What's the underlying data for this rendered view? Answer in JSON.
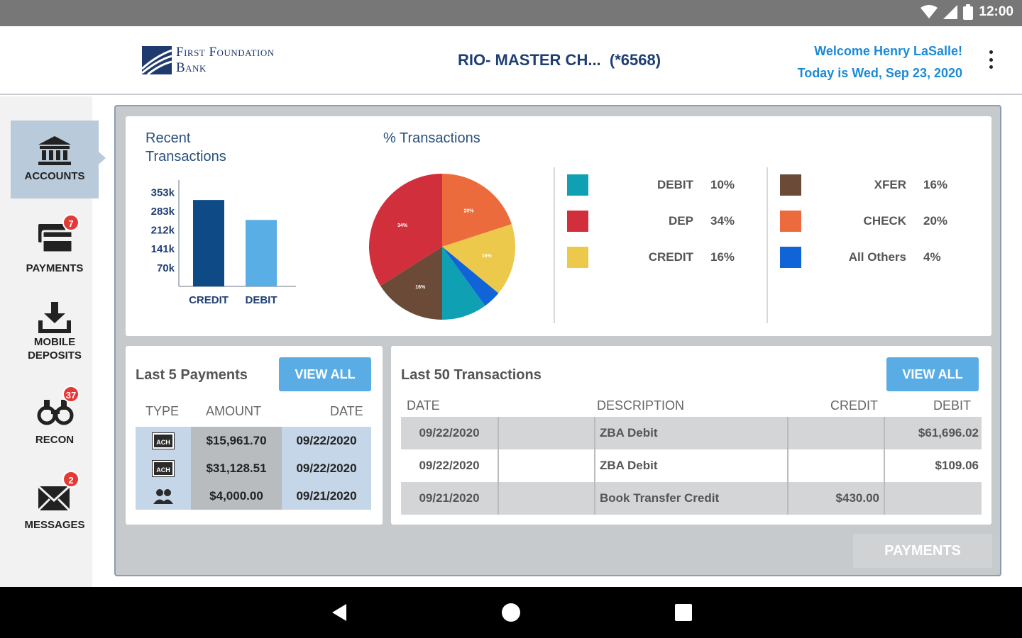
{
  "status": {
    "time": "12:00"
  },
  "header": {
    "logo_line1": "First Foundation",
    "logo_line2": "Bank",
    "account_title": "RIO- MASTER CH...  (*6568)",
    "welcome": "Welcome Henry LaSalle!",
    "today": "Today is Wed, Sep 23, 2020"
  },
  "sidebar": {
    "items": [
      {
        "label": "ACCOUNTS",
        "icon": "bank-icon"
      },
      {
        "label": "PAYMENTS",
        "icon": "card-icon",
        "badge": "7"
      },
      {
        "label_line1": "MOBILE",
        "label_line2": "DEPOSITS",
        "icon": "download-icon"
      },
      {
        "label": "RECON",
        "icon": "binoculars-icon",
        "badge": "37"
      },
      {
        "label": "MESSAGES",
        "icon": "envelope-icon",
        "badge": "2"
      }
    ]
  },
  "recent": {
    "title_line1": "Recent",
    "title_line2": "Transactions"
  },
  "chart_data": [
    {
      "type": "bar",
      "title": "Recent Transactions",
      "categories": [
        "CREDIT",
        "DEBIT"
      ],
      "values": [
        325000,
        250000
      ],
      "ytick_labels": [
        "353k",
        "283k",
        "212k",
        "141k",
        "70k"
      ],
      "ytick_values": [
        353000,
        283000,
        212000,
        141000,
        70000
      ],
      "ylim": [
        0,
        400000
      ],
      "colors": [
        "#0e4a86",
        "#5aaee6"
      ]
    },
    {
      "type": "pie",
      "title": "% Transactions",
      "categories": [
        "CHECK",
        "CREDIT",
        "All Others",
        "DEBIT",
        "XFER",
        "DEP"
      ],
      "values": [
        20,
        16,
        4,
        10,
        16,
        34
      ],
      "slice_labels": [
        "20%",
        "16%",
        "",
        "",
        "16%",
        "34%"
      ],
      "colors": [
        "#ec6b3c",
        "#ecc94b",
        "#1064d8",
        "#0fa0b4",
        "#6b4a38",
        "#d22f3c"
      ]
    }
  ],
  "legend": {
    "left": [
      {
        "label": "DEBIT",
        "pct": "10%",
        "color": "#0fa0b4"
      },
      {
        "label": "DEP",
        "pct": "34%",
        "color": "#d22f3c"
      },
      {
        "label": "CREDIT",
        "pct": "16%",
        "color": "#ecc94b"
      }
    ],
    "right": [
      {
        "label": "XFER",
        "pct": "16%",
        "color": "#6b4a38"
      },
      {
        "label": "CHECK",
        "pct": "20%",
        "color": "#ec6b3c"
      },
      {
        "label": "All Others",
        "pct": "4%",
        "color": "#1064d8"
      }
    ]
  },
  "payments": {
    "title": "Last 5 Payments",
    "view_all": "VIEW ALL",
    "headers": {
      "type": "TYPE",
      "amount": "AMOUNT",
      "date": "DATE"
    },
    "rows": [
      {
        "type": "ACH",
        "amount": "$15,961.70",
        "date": "09/22/2020"
      },
      {
        "type": "ACH",
        "amount": "$31,128.51",
        "date": "09/22/2020"
      },
      {
        "type": "people",
        "amount": "$4,000.00",
        "date": "09/21/2020"
      }
    ]
  },
  "transactions": {
    "title": "Last 50 Transactions",
    "view_all": "VIEW ALL",
    "headers": {
      "date": "DATE",
      "description": "DESCRIPTION",
      "credit": "CREDIT",
      "debit": "DEBIT"
    },
    "rows": [
      {
        "date": "09/22/2020",
        "description": "ZBA Debit",
        "credit": "",
        "debit": "$61,696.02"
      },
      {
        "date": "09/22/2020",
        "description": "ZBA Debit",
        "credit": "",
        "debit": "$109.06"
      },
      {
        "date": "09/21/2020",
        "description": "Book Transfer Credit",
        "credit": "$430.00",
        "debit": ""
      }
    ]
  },
  "footer": {
    "payments_button": "PAYMENTS"
  }
}
